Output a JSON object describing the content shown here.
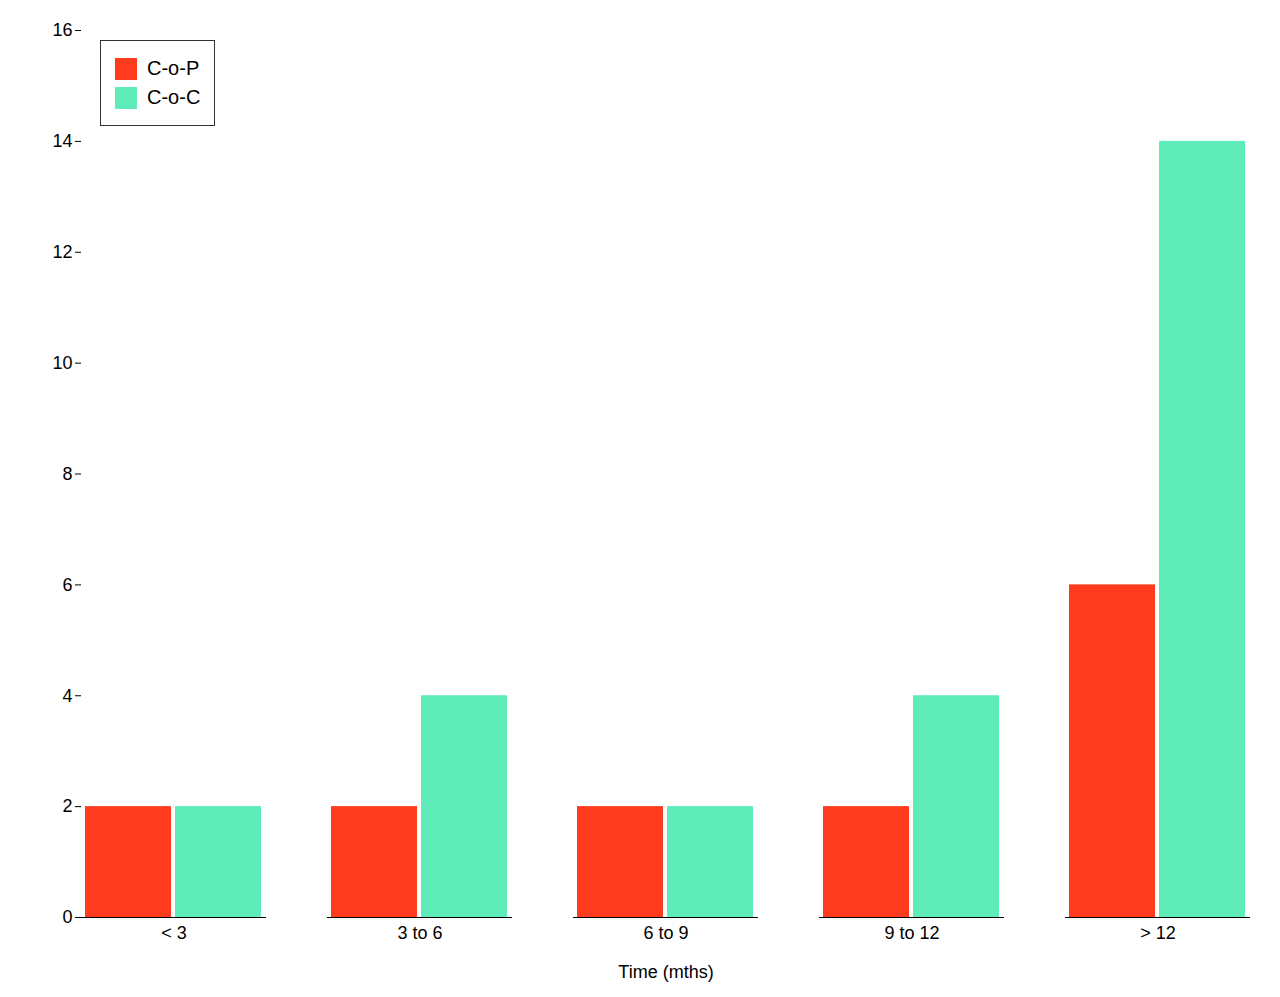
{
  "chart_data": {
    "type": "bar",
    "categories": [
      "< 3",
      "3 to 6",
      "6 to 9",
      "9 to 12",
      "> 12"
    ],
    "series": [
      {
        "name": "C-o-P",
        "color": "#FF3B1E",
        "values": [
          2,
          2,
          2,
          2,
          6
        ]
      },
      {
        "name": "C-o-C",
        "color": "#5EEDB8",
        "values": [
          2,
          4,
          2,
          4,
          14
        ]
      }
    ],
    "xlabel": "Time (mths)",
    "ylim": [
      0,
      16
    ],
    "yticks": [
      0,
      2,
      4,
      6,
      8,
      10,
      12,
      14,
      16
    ],
    "grid": false,
    "legend": "upper left"
  }
}
